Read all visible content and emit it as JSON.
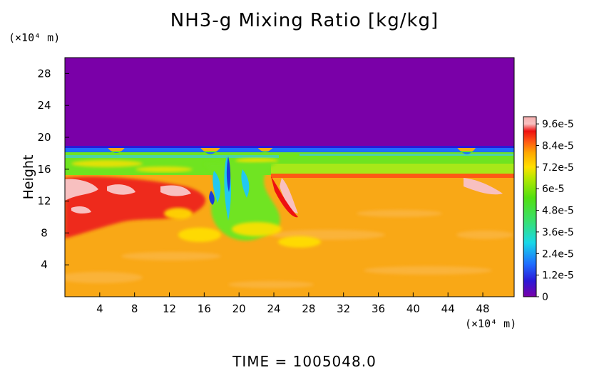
{
  "chart_data": {
    "type": "heatmap",
    "title": "NH3-g Mixing Ratio [kg/kg]",
    "xlabel": "",
    "x_unit": "(×10⁴ m)",
    "ylabel": "Height",
    "y_unit": "(×10⁴ m)",
    "footer": "TIME  =  1005048.0",
    "xlim": [
      0,
      51.6
    ],
    "ylim": [
      0,
      30
    ],
    "x_ticks": [
      "4",
      "8",
      "12",
      "16",
      "20",
      "24",
      "28",
      "32",
      "36",
      "40",
      "44",
      "48"
    ],
    "y_ticks": [
      "4",
      "8",
      "12",
      "16",
      "20",
      "24",
      "28"
    ],
    "colorbar": {
      "ticks": [
        "0",
        "1.2e-5",
        "2.4e-5",
        "3.6e-5",
        "4.8e-5",
        "6e-5",
        "7.2e-5",
        "8.4e-5",
        "9.6e-5"
      ],
      "tick_values": [
        0,
        1.2e-05,
        2.4e-05,
        3.6e-05,
        4.8e-05,
        6e-05,
        7.2e-05,
        8.4e-05,
        9.6e-05
      ],
      "range": [
        0,
        0.0001
      ],
      "colors": [
        "#7a00a8",
        "#2a1ad8",
        "#1f6cff",
        "#18d8e8",
        "#38e070",
        "#52e010",
        "#b8e800",
        "#ffe000",
        "#ffa800",
        "#ff5a14",
        "#ee1010",
        "#f8c0c0"
      ]
    },
    "regions": {
      "upper_layer_value": 0,
      "upper_layer_bottom_height": 18.8,
      "lower_layer_value": 8e-05,
      "lower_layer_color": "#f9a816",
      "mixing_band_heights": [
        15.5,
        18.8
      ],
      "mixing_band_color": "#6fe420",
      "turbulent_column_x": [
        14,
        26
      ]
    }
  }
}
